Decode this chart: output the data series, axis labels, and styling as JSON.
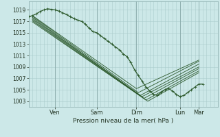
{
  "title": "",
  "xlabel": "Pression niveau de la mer( hPa )",
  "bg_color": "#cce8e8",
  "grid_color": "#aacccc",
  "line_color": "#2d5a2d",
  "ylim": [
    1002.0,
    1020.5
  ],
  "yticks": [
    1003,
    1005,
    1007,
    1009,
    1011,
    1013,
    1015,
    1017,
    1019
  ],
  "xlim": [
    0.0,
    100.0
  ],
  "xtick_positions": [
    14,
    36,
    57,
    80,
    90
  ],
  "xtick_labels": [
    "Ven",
    "Sam",
    "Dim",
    "Lun",
    "Mar"
  ],
  "vlines": [
    14,
    36,
    57,
    80,
    90
  ],
  "forecast_lines": [
    {
      "x0": 2,
      "y0": 1018.0,
      "x1": 57,
      "y1": 1005.2,
      "x2": 90,
      "y2": 1010.2
    },
    {
      "x0": 2,
      "y0": 1017.9,
      "x1": 58,
      "y1": 1004.5,
      "x2": 90,
      "y2": 1010.0
    },
    {
      "x0": 2,
      "y0": 1017.7,
      "x1": 59,
      "y1": 1004.0,
      "x2": 90,
      "y2": 1009.5
    },
    {
      "x0": 2,
      "y0": 1017.5,
      "x1": 60,
      "y1": 1003.8,
      "x2": 90,
      "y2": 1009.0
    },
    {
      "x0": 2,
      "y0": 1017.3,
      "x1": 61,
      "y1": 1003.5,
      "x2": 90,
      "y2": 1008.7
    },
    {
      "x0": 2,
      "y0": 1017.1,
      "x1": 62,
      "y1": 1003.2,
      "x2": 90,
      "y2": 1008.3
    },
    {
      "x0": 2,
      "y0": 1016.9,
      "x1": 63,
      "y1": 1003.0,
      "x2": 90,
      "y2": 1008.0
    }
  ],
  "obs_x": [
    0,
    2,
    4,
    6,
    8,
    10,
    12,
    14,
    16,
    18,
    20,
    22,
    24,
    26,
    28,
    30,
    32,
    34,
    36,
    38,
    40,
    42,
    44,
    46,
    48,
    50,
    52,
    54,
    56,
    58,
    60,
    62,
    64,
    66,
    68,
    70,
    72,
    74,
    76,
    78,
    80,
    82,
    84,
    86,
    88,
    90,
    92
  ],
  "obs_y": [
    1017.8,
    1018.0,
    1018.3,
    1018.7,
    1019.0,
    1019.2,
    1019.1,
    1019.0,
    1018.8,
    1018.5,
    1018.2,
    1017.8,
    1017.5,
    1017.2,
    1017.0,
    1016.5,
    1015.8,
    1015.2,
    1015.0,
    1014.5,
    1014.0,
    1013.5,
    1013.0,
    1012.5,
    1012.0,
    1011.3,
    1010.8,
    1009.8,
    1008.5,
    1007.5,
    1006.5,
    1005.5,
    1004.8,
    1004.2,
    1004.0,
    1004.5,
    1005.0,
    1005.2,
    1004.8,
    1004.2,
    1003.8,
    1004.0,
    1004.5,
    1005.0,
    1005.5,
    1006.0,
    1006.0
  ],
  "ytick_fontsize": 5.5,
  "xtick_fontsize": 6.0,
  "xlabel_fontsize": 6.5
}
